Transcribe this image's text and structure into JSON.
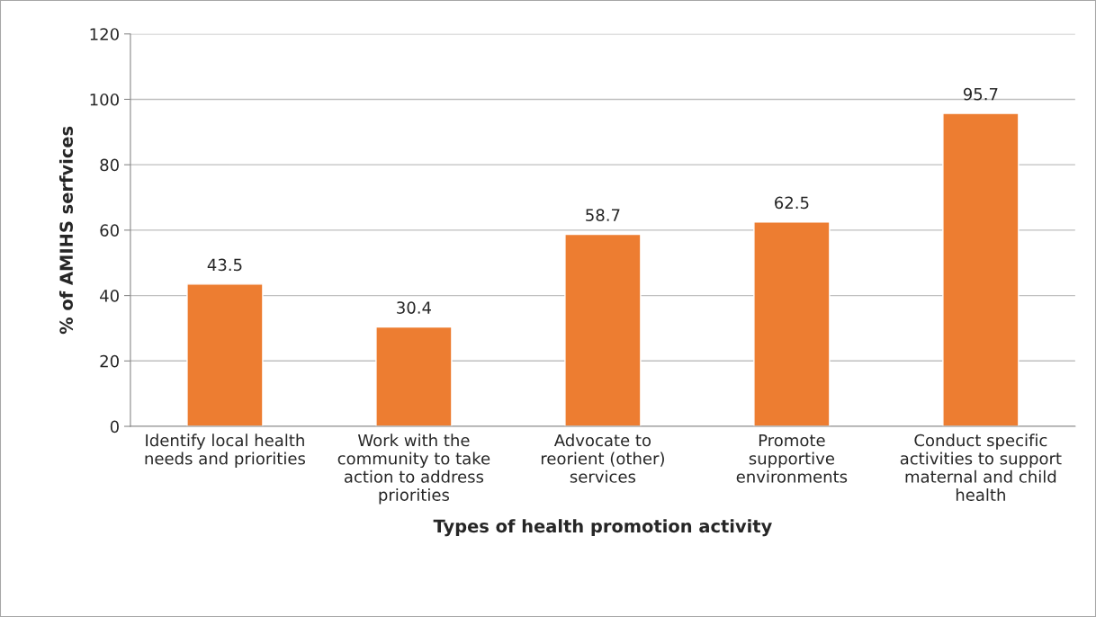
{
  "chart_data": {
    "type": "bar",
    "categories": [
      "Identify local health\nneeds and priorities",
      "Work with the\ncommunity to take\naction to address\npriorities",
      "Advocate to\nreorient (other)\nservices",
      "Promote\nsupportive\nenvironments",
      "Conduct specific\nactivities to support\nmaternal and child\nhealth"
    ],
    "values": [
      43.5,
      30.4,
      58.7,
      62.5,
      95.7
    ],
    "color": "#ed7d31",
    "xlabel": "Types of health promotion activity",
    "ylabel": "% of AMIHS serfvices",
    "ylim": [
      0,
      120
    ],
    "yticks": [
      0,
      20,
      40,
      60,
      80,
      100,
      120
    ],
    "grid": "y",
    "data_labels": true
  }
}
